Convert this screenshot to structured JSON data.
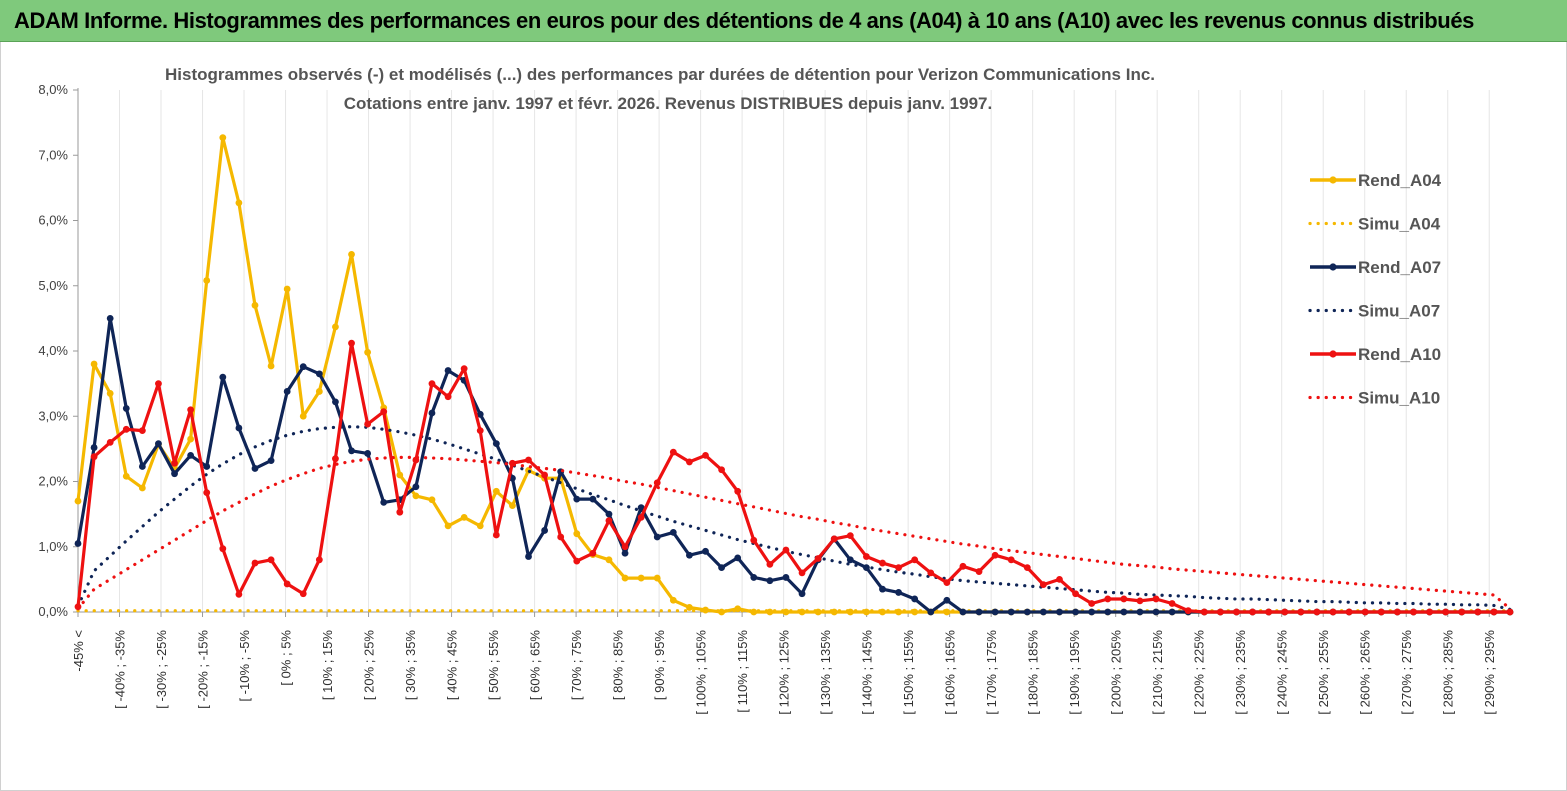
{
  "header": {
    "banner_title": "ADAM Informe. Histogrammes des performances en euros pour des détentions de 4 ans (A04) à 10 ans (A10) avec les revenus connus distribués"
  },
  "chart_data": {
    "type": "line",
    "title_line1": "Histogrammes observés (-) et modélisés (...) des performances par durées de détention pour Verizon Communications Inc.",
    "title_line2": "Cotations entre janv. 1997 et févr. 2026. Revenus DISTRIBUES depuis janv. 1997.",
    "ylim": [
      0,
      8
    ],
    "yticks": [
      0,
      1,
      2,
      3,
      4,
      5,
      6,
      7,
      8
    ],
    "ytick_labels": [
      "0,0%",
      "1,0%",
      "2,0%",
      "3,0%",
      "4,0%",
      "5,0%",
      "6,0%",
      "7,0%",
      "8,0%"
    ],
    "xtick_labels": [
      "-45% <",
      "[ -40% ; -35%",
      "[ -30% ; -25%",
      "[ -20% ; -15%",
      "[ -10% ; -5%",
      "[ 0% ; 5%",
      "[ 10% ; 15%",
      "[ 20% ; 25%",
      "[ 30% ; 35%",
      "[ 40% ; 45%",
      "[ 50% ; 55%",
      "[ 60% ; 65%",
      "[ 70% ; 75%",
      "[ 80% ; 85%",
      "[ 90% ; 95%",
      "[ 100% ; 105%",
      "[ 110% ; 115%",
      "[ 120% ; 125%",
      "[ 130% ; 135%",
      "[ 140% ; 145%",
      "[ 150% ; 155%",
      "[ 160% ; 165%",
      "[ 170% ; 175%",
      "[ 180% ; 185%",
      "[ 190% ; 195%",
      "[ 200% ; 205%",
      "[ 210% ; 215%",
      "[ 220% ; 225%",
      "[ 230% ; 235%",
      "[ 240% ; 245%",
      "[ 250% ; 255%",
      "[ 260% ; 265%",
      "[ 270% ; 275%",
      "[ 280% ; 285%",
      "[ 290% ; 295%"
    ],
    "legend_position": "right",
    "series": [
      {
        "name": "Rend_A04",
        "color": "#f5b800",
        "style": "solid",
        "markers": true,
        "values": [
          1.7,
          3.8,
          3.35,
          2.08,
          1.9,
          2.57,
          2.2,
          2.65,
          5.08,
          7.27,
          6.27,
          4.7,
          3.77,
          4.95,
          3.0,
          3.38,
          4.37,
          5.48,
          3.98,
          3.13,
          2.1,
          1.78,
          1.72,
          1.32,
          1.45,
          1.32,
          1.85,
          1.63,
          2.17,
          2.05,
          2.05,
          1.2,
          0.88,
          0.8,
          0.52,
          0.52,
          0.52,
          0.18,
          0.07,
          0.03,
          0.0,
          0.05,
          0.0,
          0,
          0,
          0,
          0,
          0,
          0,
          0,
          0,
          0,
          0,
          0,
          0,
          0,
          0,
          0,
          0,
          0,
          0,
          0,
          0,
          0,
          0,
          0,
          0,
          0,
          0,
          0,
          0,
          0,
          0,
          0,
          0,
          0,
          0,
          0,
          0,
          0,
          0,
          0,
          0,
          0,
          0,
          0,
          0,
          0,
          0,
          0
        ]
      },
      {
        "name": "Simu_A04",
        "color": "#f5b800",
        "style": "dotted",
        "markers": false,
        "values": [
          0.02,
          0.02,
          0.02,
          0.02,
          0.02,
          0.02,
          0.02,
          0.02,
          0.02,
          0.02,
          0.02,
          0.02,
          0.02,
          0.02,
          0.02,
          0.02,
          0.02,
          0.02,
          0.02,
          0.02,
          0.02,
          0.02,
          0.02,
          0.02,
          0.02,
          0.02,
          0.02,
          0.02,
          0.02,
          0.02,
          0.02,
          0.02,
          0.02,
          0.02,
          0.02,
          0.02,
          0.02,
          0.02,
          0.02,
          0.02,
          0.02,
          0.02,
          0.02,
          0.02,
          0.02,
          0.02,
          0.02,
          0.02,
          0.02,
          0.02,
          0.02,
          0.02,
          0.02,
          0.02,
          0.02,
          0.02,
          0.02,
          0.02,
          0.02,
          0.02,
          0.02,
          0.02,
          0.02,
          0.02,
          0.02,
          0.02,
          0.02,
          0.02,
          0.02,
          0.02,
          0.02,
          0.02,
          0.02,
          0.02,
          0.02,
          0.02,
          0.02,
          0.02,
          0.02,
          0.02,
          0.02,
          0.02,
          0.02,
          0.02,
          0.02,
          0.02,
          0.02,
          0.02,
          0.02,
          0.02
        ]
      },
      {
        "name": "Rend_A07",
        "color": "#0f2557",
        "style": "solid",
        "markers": true,
        "values": [
          1.05,
          2.52,
          4.5,
          3.12,
          2.23,
          2.58,
          2.12,
          2.4,
          2.23,
          3.6,
          2.82,
          2.2,
          2.32,
          3.38,
          3.76,
          3.65,
          3.22,
          2.47,
          2.43,
          1.68,
          1.72,
          1.92,
          3.05,
          3.7,
          3.55,
          3.03,
          2.58,
          2.05,
          0.85,
          1.25,
          2.15,
          1.73,
          1.73,
          1.5,
          0.9,
          1.6,
          1.15,
          1.22,
          0.87,
          0.93,
          0.68,
          0.83,
          0.53,
          0.48,
          0.53,
          0.28,
          0.8,
          1.12,
          0.8,
          0.68,
          0.35,
          0.3,
          0.2,
          0.0,
          0.18,
          0.0,
          0,
          0,
          0,
          0,
          0,
          0,
          0,
          0,
          0,
          0,
          0,
          0,
          0,
          0,
          0,
          0,
          0,
          0,
          0,
          0,
          0,
          0,
          0,
          0,
          0,
          0,
          0,
          0,
          0,
          0,
          0,
          0,
          0,
          0
        ]
      },
      {
        "name": "Simu_A07",
        "color": "#0f2557",
        "style": "dotted",
        "markers": false,
        "values": [
          0.09,
          0.63,
          0.86,
          1.09,
          1.31,
          1.53,
          1.73,
          1.93,
          2.11,
          2.27,
          2.41,
          2.53,
          2.63,
          2.71,
          2.77,
          2.81,
          2.83,
          2.84,
          2.83,
          2.8,
          2.76,
          2.71,
          2.65,
          2.58,
          2.5,
          2.42,
          2.34,
          2.25,
          2.16,
          2.07,
          1.98,
          1.89,
          1.8,
          1.72,
          1.63,
          1.55,
          1.47,
          1.39,
          1.32,
          1.25,
          1.18,
          1.11,
          1.05,
          0.99,
          0.93,
          0.88,
          0.83,
          0.78,
          0.73,
          0.69,
          0.65,
          0.61,
          0.58,
          0.54,
          0.51,
          0.48,
          0.46,
          0.44,
          0.42,
          0.4,
          0.38,
          0.36,
          0.34,
          0.32,
          0.3,
          0.29,
          0.27,
          0.26,
          0.25,
          0.24,
          0.22,
          0.21,
          0.2,
          0.2,
          0.19,
          0.18,
          0.17,
          0.16,
          0.16,
          0.15,
          0.14,
          0.14,
          0.13,
          0.13,
          0.12,
          0.12,
          0.11,
          0.11,
          0.1,
          0.04
        ]
      },
      {
        "name": "Rend_A10",
        "color": "#ee1111",
        "style": "solid",
        "markers": true,
        "values": [
          0.08,
          2.38,
          2.6,
          2.8,
          2.78,
          3.5,
          2.28,
          3.1,
          1.83,
          0.97,
          0.27,
          0.75,
          0.8,
          0.43,
          0.28,
          0.8,
          2.35,
          4.12,
          2.88,
          3.07,
          1.53,
          2.33,
          3.5,
          3.3,
          3.73,
          2.78,
          1.18,
          2.28,
          2.33,
          2.1,
          1.15,
          0.78,
          0.9,
          1.4,
          1.0,
          1.45,
          1.98,
          2.45,
          2.3,
          2.4,
          2.18,
          1.85,
          1.1,
          0.73,
          0.95,
          0.6,
          0.82,
          1.12,
          1.17,
          0.85,
          0.75,
          0.68,
          0.8,
          0.6,
          0.45,
          0.7,
          0.62,
          0.87,
          0.8,
          0.68,
          0.42,
          0.5,
          0.28,
          0.13,
          0.2,
          0.2,
          0.17,
          0.2,
          0.13,
          0.02,
          0,
          0,
          0,
          0,
          0,
          0,
          0,
          0,
          0,
          0,
          0,
          0,
          0,
          0,
          0,
          0,
          0,
          0,
          0,
          0
        ]
      },
      {
        "name": "Simu_A10",
        "color": "#ee1111",
        "style": "dotted",
        "markers": false,
        "values": [
          0.05,
          0.35,
          0.5,
          0.65,
          0.8,
          0.95,
          1.1,
          1.25,
          1.4,
          1.55,
          1.68,
          1.81,
          1.93,
          2.03,
          2.12,
          2.2,
          2.26,
          2.31,
          2.34,
          2.36,
          2.37,
          2.37,
          2.36,
          2.35,
          2.33,
          2.31,
          2.29,
          2.26,
          2.23,
          2.2,
          2.17,
          2.13,
          2.09,
          2.05,
          2.0,
          1.96,
          1.91,
          1.86,
          1.81,
          1.76,
          1.71,
          1.66,
          1.61,
          1.56,
          1.51,
          1.46,
          1.42,
          1.37,
          1.33,
          1.28,
          1.24,
          1.2,
          1.16,
          1.12,
          1.08,
          1.04,
          1.01,
          0.97,
          0.94,
          0.91,
          0.88,
          0.85,
          0.82,
          0.79,
          0.76,
          0.73,
          0.71,
          0.69,
          0.66,
          0.64,
          0.62,
          0.6,
          0.58,
          0.56,
          0.54,
          0.52,
          0.5,
          0.48,
          0.46,
          0.44,
          0.42,
          0.4,
          0.38,
          0.36,
          0.34,
          0.32,
          0.3,
          0.28,
          0.26,
          0.05
        ]
      }
    ]
  }
}
